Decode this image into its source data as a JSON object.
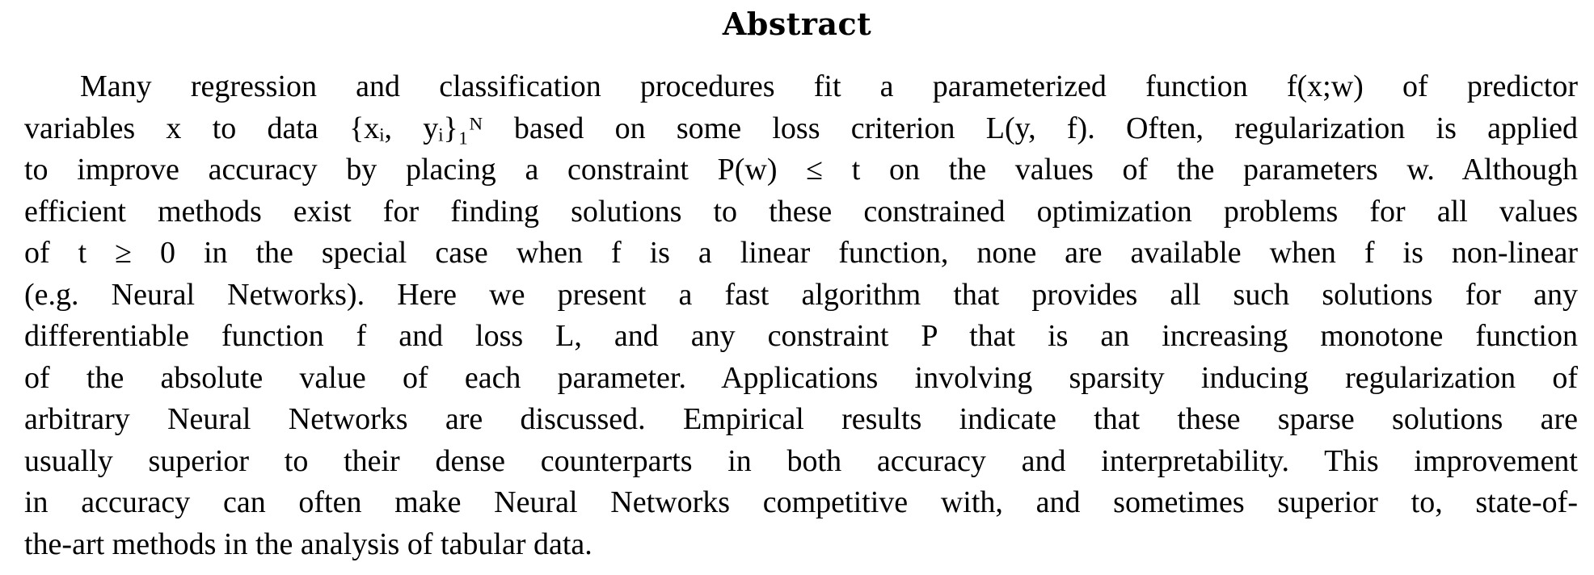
{
  "abstract": {
    "title": "Abstract",
    "lines": [
      "Many regression and classification procedures fit a parameterized function f(x;w) of predictor",
      "variables x to data {xᵢ, yᵢ}₁ᴺ based on some loss criterion L(y, f). Often, regularization is applied",
      "to improve accuracy by placing a constraint P(w) ≤ t on the values of the parameters w. Although",
      "efficient methods exist for finding solutions to these constrained optimization problems for all values",
      "of t ≥ 0 in the special case when f is a linear function, none are available when f is non-linear",
      "(e.g. Neural Networks). Here we present a fast algorithm that provides all such solutions for any",
      "differentiable function f and loss L, and any constraint P that is an increasing monotone function",
      "of the absolute value of each parameter. Applications involving sparsity inducing regularization of",
      "arbitrary Neural Networks are discussed. Empirical results indicate that these sparse solutions are",
      "usually superior to their dense counterparts in both accuracy and interpretability. This improvement",
      "in accuracy can often make Neural Networks competitive with, and sometimes superior to, state-of-",
      "the-art methods in the analysis of tabular data."
    ]
  }
}
